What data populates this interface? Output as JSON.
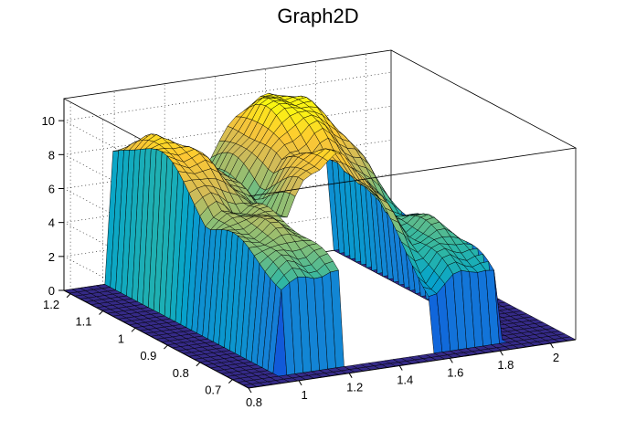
{
  "chart_data": {
    "type": "surface",
    "title": "Graph2D",
    "palette": "kBird",
    "palette_colors": [
      "#352a87",
      "#0f5cdd",
      "#1481d6",
      "#06a4ca",
      "#2eb7a4",
      "#87bf77",
      "#d1bb59",
      "#fec832",
      "#f9fb0e"
    ],
    "mesh_color": "#000000",
    "x_axis": {
      "range": [
        0.8,
        2.1
      ],
      "ticks": [
        0.8,
        1,
        1.2,
        1.4,
        1.6,
        1.8,
        2
      ],
      "tick_labels": [
        "0.8",
        "1",
        "1.2",
        "1.4",
        "1.6",
        "1.8",
        "2"
      ]
    },
    "y_axis": {
      "range": [
        0.65,
        1.22
      ],
      "ticks": [
        0.7,
        0.8,
        0.9,
        1,
        1.1,
        1.2
      ],
      "tick_labels": [
        "0.7",
        "0.8",
        "0.9",
        "1",
        "1.1",
        "1.2"
      ]
    },
    "z_axis": {
      "range": [
        0,
        11.3
      ],
      "ticks": [
        0,
        2,
        4,
        6,
        8,
        10
      ],
      "tick_labels": [
        "0",
        "2",
        "4",
        "6",
        "8",
        "10"
      ]
    },
    "grid": true,
    "blobs": [
      {
        "x": 1.05,
        "y": 1.1,
        "sx": 0.3,
        "sy": 0.2,
        "amp": 9.3
      },
      {
        "x": 1.15,
        "y": 0.88,
        "sx": 0.4,
        "sy": 0.25,
        "amp": 7.0
      },
      {
        "x": 1.5,
        "y": 0.95,
        "sx": 0.2,
        "sy": 0.18,
        "amp": 9.2
      },
      {
        "x": 1.6,
        "y": 1.15,
        "sx": 0.25,
        "sy": 0.2,
        "amp": 10.3
      },
      {
        "x": 1.75,
        "y": 0.85,
        "sx": 0.2,
        "sy": 0.2,
        "amp": 5.8
      }
    ],
    "support": {
      "x": [
        0.97,
        1.86
      ],
      "y": [
        0.7,
        1.22
      ]
    },
    "hole": {
      "x": [
        1.24,
        1.56
      ],
      "y": [
        0.65,
        0.92
      ]
    },
    "z_cap": 10.2
  }
}
